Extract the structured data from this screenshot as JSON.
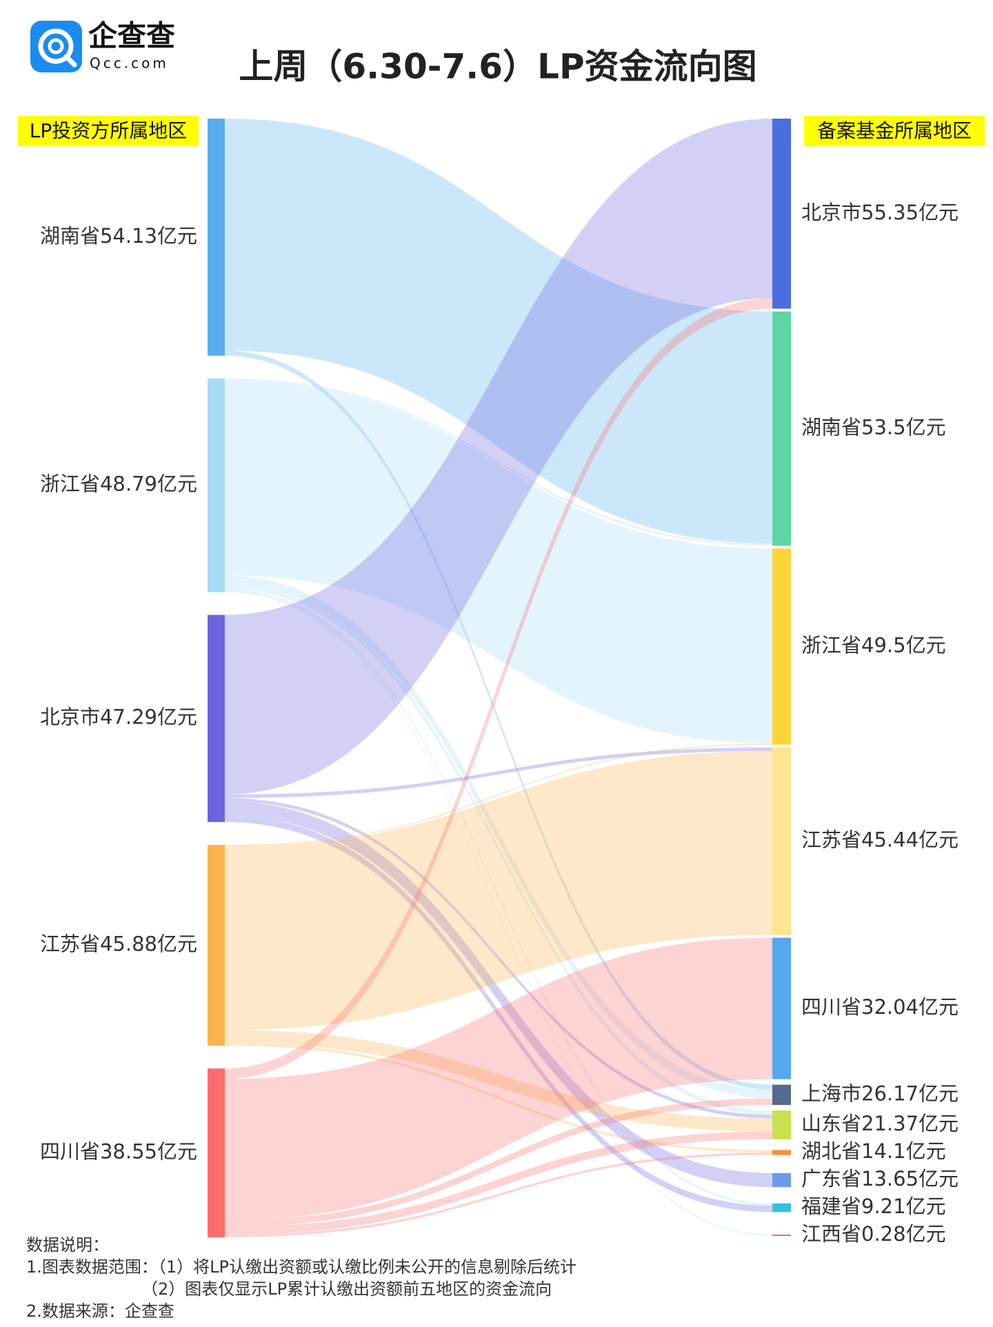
{
  "chart_data": {
    "type": "sankey",
    "title": "上周（6.30-7.6）LP资金流向图",
    "logo": {
      "name": "企查查",
      "domain": "Qcc.com"
    },
    "source_header": "LP投资方所属地区",
    "target_header": "备案基金所属地区",
    "sources": [
      {
        "label": "湖南省54.13亿元",
        "color": "#5aaef0"
      },
      {
        "label": "浙江省48.79亿元",
        "color": "#a6dcf7"
      },
      {
        "label": "北京市47.29亿元",
        "color": "#6c63e0"
      },
      {
        "label": "江苏省45.88亿元",
        "color": "#fbb44b"
      },
      {
        "label": "四川省38.55亿元",
        "color": "#fb6d6d"
      }
    ],
    "targets": [
      {
        "label": "北京市55.35亿元",
        "color": "#4a6ee0"
      },
      {
        "label": "湖南省53.5亿元",
        "color": "#5fd6a5"
      },
      {
        "label": "浙江省49.5亿元",
        "color": "#fdd53b"
      },
      {
        "label": "江苏省45.44亿元",
        "color": "#fee58f"
      },
      {
        "label": "四川省32.04亿元",
        "color": "#55a9f0"
      },
      {
        "label": "上海市26.17亿元",
        "color": "#56698f"
      },
      {
        "label": "山东省21.37亿元",
        "color": "#c8e24f"
      },
      {
        "label": "湖北省14.1亿元",
        "color": "#fa8c3c"
      },
      {
        "label": "广东省13.65亿元",
        "color": "#6b9ae8"
      },
      {
        "label": "福建省9.21亿元",
        "color": "#2fc4dc"
      },
      {
        "label": "江西省0.28亿元",
        "color": "#f26a6a"
      }
    ],
    "links": [
      {
        "source": 0,
        "target": 1,
        "value": 53.0
      },
      {
        "source": 0,
        "target": 5,
        "value": 1.13
      },
      {
        "source": 1,
        "target": 1,
        "value": 0.5
      },
      {
        "source": 1,
        "target": 2,
        "value": 44.5
      },
      {
        "source": 1,
        "target": 5,
        "value": 2.0
      },
      {
        "source": 1,
        "target": 6,
        "value": 1.0
      },
      {
        "source": 1,
        "target": 9,
        "value": 0.5
      },
      {
        "source": 1,
        "target": 10,
        "value": 0.29
      },
      {
        "source": 2,
        "target": 0,
        "value": 41.0
      },
      {
        "source": 2,
        "target": 3,
        "value": 0.8
      },
      {
        "source": 2,
        "target": 6,
        "value": 0.79
      },
      {
        "source": 2,
        "target": 8,
        "value": 3.2
      },
      {
        "source": 2,
        "target": 9,
        "value": 1.5
      },
      {
        "source": 3,
        "target": 2,
        "value": 0.3
      },
      {
        "source": 3,
        "target": 3,
        "value": 42.0
      },
      {
        "source": 3,
        "target": 6,
        "value": 3.0
      },
      {
        "source": 3,
        "target": 7,
        "value": 0.58
      },
      {
        "source": 4,
        "target": 0,
        "value": 2.4
      },
      {
        "source": 4,
        "target": 4,
        "value": 32.3
      },
      {
        "source": 4,
        "target": 5,
        "value": 1.5
      },
      {
        "source": 4,
        "target": 6,
        "value": 1.8
      },
      {
        "source": 4,
        "target": 7,
        "value": 0.55
      }
    ],
    "notes": [
      "数据说明：",
      "1.图表数据范围：（1）将LP认缴出资额或认缴比例未公开的信息剔除后统计",
      "（2）图表仅显示LP累计认缴出资额前五地区的资金流向",
      "2.数据来源：企查查"
    ]
  }
}
